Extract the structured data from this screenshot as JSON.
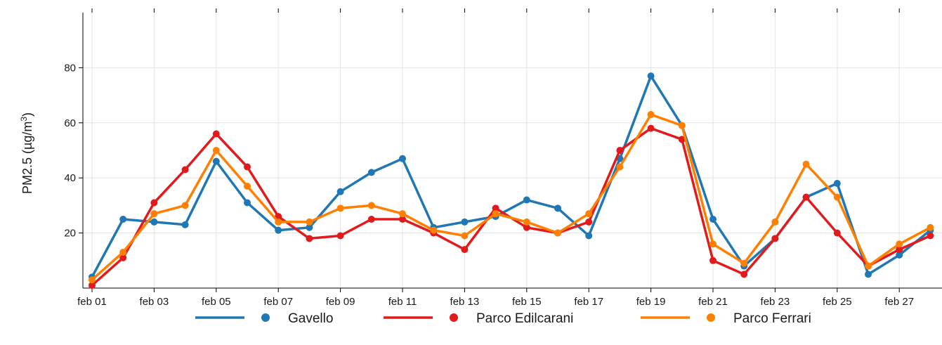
{
  "chart_data": {
    "type": "line",
    "x": [
      "feb 01",
      "feb 02",
      "feb 03",
      "feb 04",
      "feb 05",
      "feb 06",
      "feb 07",
      "feb 08",
      "feb 09",
      "feb 10",
      "feb 11",
      "feb 12",
      "feb 13",
      "feb 14",
      "feb 15",
      "feb 16",
      "feb 17",
      "feb 18",
      "feb 19",
      "feb 20",
      "feb 21",
      "feb 22",
      "feb 23",
      "feb 24",
      "feb 25",
      "feb 26",
      "feb 27",
      "feb 28"
    ],
    "x_tick_labels": [
      "feb 01",
      "feb 03",
      "feb 05",
      "feb 07",
      "feb 09",
      "feb 11",
      "feb 13",
      "feb 15",
      "feb 17",
      "feb 19",
      "feb 21",
      "feb 23",
      "feb 25",
      "feb 27"
    ],
    "y_ticks": [
      20,
      40,
      60,
      80
    ],
    "ylim": [
      0,
      100
    ],
    "ylabel": "PM2.5 (µg/m³)",
    "ylabel_main": "PM2.5 (µg/m",
    "ylabel_sup": "3",
    "ylabel_close": ")",
    "xlabel": "",
    "grid": true,
    "legend_position": "bottom",
    "series": [
      {
        "name": "Gavello",
        "color": "#1f77b4",
        "values": [
          4,
          25,
          24,
          23,
          46,
          31,
          21,
          22,
          35,
          42,
          47,
          22,
          24,
          26,
          32,
          29,
          19,
          47,
          77,
          59,
          25,
          8,
          18,
          33,
          38,
          5,
          12,
          21
        ]
      },
      {
        "name": "Parco Edilcarani",
        "color": "#e31a1c",
        "values": [
          1,
          11,
          31,
          43,
          56,
          44,
          26,
          18,
          19,
          25,
          25,
          20,
          14,
          29,
          22,
          20,
          24,
          50,
          58,
          54,
          10,
          5,
          18,
          33,
          20,
          8,
          14,
          19
        ]
      },
      {
        "name": "Parco Ferrari",
        "color": "#ff7f00",
        "values": [
          3,
          13,
          27,
          30,
          50,
          37,
          24,
          24,
          29,
          30,
          27,
          21,
          19,
          27,
          24,
          20,
          27,
          44,
          63,
          59,
          16,
          9,
          24,
          45,
          33,
          8,
          16,
          22
        ]
      }
    ]
  }
}
